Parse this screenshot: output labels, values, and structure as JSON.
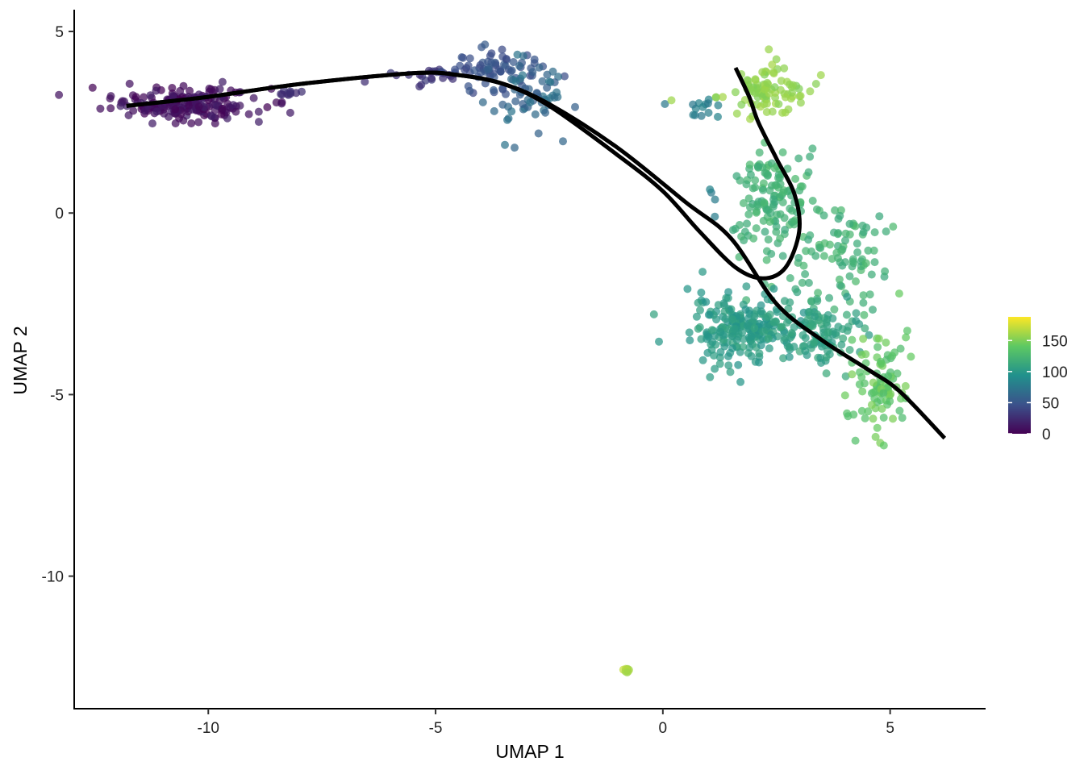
{
  "chart_data": {
    "type": "scatter",
    "title": "",
    "xlabel": "UMAP 1",
    "ylabel": "UMAP 2",
    "xlim": [
      -12.95,
      7.1
    ],
    "ylim": [
      -13.65,
      5.6
    ],
    "xticks": [
      -10,
      -5,
      0,
      5
    ],
    "xtick_labels": [
      "-10",
      "-5",
      "0",
      "5"
    ],
    "yticks": [
      5,
      0,
      -5,
      -10
    ],
    "ytick_labels": [
      "5",
      "0",
      "-5",
      "-10"
    ],
    "grid": false,
    "legend": {
      "position": "right",
      "type": "colorbar",
      "range": [
        0,
        188
      ],
      "ticks": [
        0,
        50,
        100,
        150
      ],
      "tick_labels": [
        "0",
        "50",
        "100",
        "150"
      ],
      "palette": "viridis",
      "colors": [
        "#440154",
        "#3b528b",
        "#21918c",
        "#5ec962",
        "#fde725"
      ]
    },
    "clusters": [
      {
        "cx": -10.5,
        "cy": 3.0,
        "sx": 0.8,
        "sy": 0.22,
        "n": 200,
        "t0": 0,
        "t1": 18
      },
      {
        "cx": -8.3,
        "cy": 3.3,
        "sx": 0.2,
        "sy": 0.05,
        "n": 10,
        "t0": 22,
        "t1": 32
      },
      {
        "cx": -5.2,
        "cy": 3.8,
        "sx": 0.4,
        "sy": 0.12,
        "n": 25,
        "t0": 25,
        "t1": 35
      },
      {
        "cx": -3.8,
        "cy": 3.9,
        "sx": 0.5,
        "sy": 0.35,
        "n": 70,
        "t0": 40,
        "t1": 55
      },
      {
        "cx": -3.0,
        "cy": 3.3,
        "sx": 0.45,
        "sy": 0.5,
        "n": 60,
        "t0": 55,
        "t1": 75
      },
      {
        "cx": 0.9,
        "cy": 2.85,
        "sx": 0.3,
        "sy": 0.15,
        "n": 14,
        "t0": 75,
        "t1": 85
      },
      {
        "cx": 2.2,
        "cy": 3.4,
        "sx": 0.5,
        "sy": 0.35,
        "n": 90,
        "t0": 150,
        "t1": 162
      },
      {
        "cx": 2.4,
        "cy": 0.3,
        "sx": 0.5,
        "sy": 0.8,
        "n": 140,
        "t0": 112,
        "t1": 128
      },
      {
        "cx": 1.1,
        "cy": 0.3,
        "sx": 0.08,
        "sy": 0.2,
        "n": 4,
        "t0": 75,
        "t1": 85
      },
      {
        "cx": 4.0,
        "cy": -1.2,
        "sx": 0.5,
        "sy": 0.8,
        "n": 80,
        "t0": 112,
        "t1": 128
      },
      {
        "cx": 1.8,
        "cy": -3.2,
        "sx": 0.6,
        "sy": 0.45,
        "n": 220,
        "t0": 95,
        "t1": 110
      },
      {
        "cx": 3.5,
        "cy": -3.3,
        "sx": 0.5,
        "sy": 0.5,
        "n": 100,
        "t0": 100,
        "t1": 115
      },
      {
        "cx": 4.8,
        "cy": -4.6,
        "sx": 0.3,
        "sy": 0.7,
        "n": 90,
        "t0": 128,
        "t1": 150
      },
      {
        "cx": -0.82,
        "cy": -12.6,
        "sx": 0.04,
        "sy": 0.03,
        "n": 10,
        "t0": 160,
        "t1": 172
      }
    ],
    "curves": [
      {
        "name": "",
        "x": [
          -11.8,
          -10.0,
          -8.0,
          -5.5,
          -4.5,
          -3.5,
          -2.5,
          -1.0,
          0.5,
          1.5,
          2.5,
          3.5,
          4.5,
          5.2,
          6.2
        ],
        "y": [
          2.95,
          3.2,
          3.55,
          3.85,
          3.8,
          3.55,
          3.0,
          1.8,
          0.3,
          -0.7,
          -2.5,
          -3.5,
          -4.3,
          -4.9,
          -6.2
        ]
      },
      {
        "name": "",
        "x": [
          -11.8,
          -10.0,
          -8.0,
          -5.5,
          -4.5,
          -3.5,
          -2.5,
          -1.0,
          0.0,
          0.8,
          1.6,
          2.2,
          2.7,
          3.0,
          2.9,
          2.5,
          2.1,
          1.9,
          1.6
        ],
        "y": [
          2.95,
          3.2,
          3.55,
          3.85,
          3.8,
          3.55,
          2.95,
          1.6,
          0.6,
          -0.5,
          -1.5,
          -1.8,
          -1.5,
          -0.5,
          0.5,
          1.5,
          2.5,
          3.2,
          4.0
        ]
      }
    ]
  }
}
